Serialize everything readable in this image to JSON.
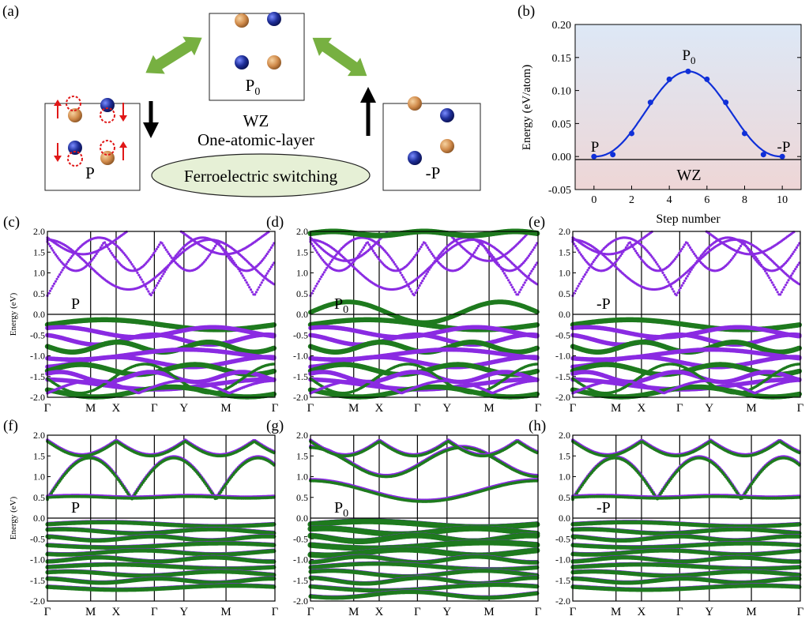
{
  "panel_labels": [
    "(a)",
    "(b)",
    "(c)",
    "(d)",
    "(e)",
    "(f)",
    "(g)",
    "(h)"
  ],
  "schematic": {
    "center_label": "P",
    "center_sub": "0",
    "wz_label": "WZ",
    "layer_label": "One-atomic-layer",
    "switching_label": "Ferroelectric switching",
    "left_label": "P",
    "right_label": "-P",
    "colors": {
      "cation": "#d08a4a",
      "anion": "#1f2f9a",
      "arrow_green": "#77b041",
      "dipole_red": "#e01818"
    }
  },
  "chart_data": [
    {
      "id": "b",
      "type": "line",
      "xlabel": "Step number",
      "ylabel": "Energy (eV/atom)",
      "x": [
        0,
        1,
        2,
        3,
        4,
        5,
        6,
        7,
        8,
        9,
        10
      ],
      "values": [
        0.0,
        0.003,
        0.035,
        0.082,
        0.117,
        0.129,
        0.117,
        0.082,
        0.035,
        0.003,
        0.0
      ],
      "xlim": [
        -1,
        11
      ],
      "ylim": [
        -0.05,
        0.2
      ],
      "xticks": [
        "0",
        "2",
        "4",
        "6",
        "8",
        "10"
      ],
      "yticks": [
        "-0.05",
        "0.00",
        "0.05",
        "0.10",
        "0.15",
        "0.20"
      ],
      "annotations": {
        "start": "P",
        "peak": "P",
        "peak_sub": "0",
        "end": "-P",
        "phase": "WZ"
      },
      "line_color": "#1030d8",
      "background": {
        "top": "#dde8f6",
        "bottom": "#eed6d6"
      },
      "grid": false
    },
    {
      "type": "band-structure",
      "panels": [
        "c",
        "d",
        "e",
        "f",
        "g",
        "h"
      ],
      "ylabel": "Energy (eV)",
      "ylim": [
        -2.0,
        2.0
      ],
      "yticks": [
        "2.0",
        "1.5",
        "1.0",
        "0.5",
        "0.0",
        "-0.5",
        "-1.0",
        "-1.5",
        "-2.0"
      ],
      "kpath": [
        "Γ",
        "M",
        "X",
        "Γ",
        "Y",
        "M",
        "Γ"
      ],
      "kpath_positions": [
        0,
        0.19,
        0.302,
        0.47,
        0.6,
        0.785,
        1.0
      ],
      "fermi_level": 0.0,
      "labels": {
        "c": {
          "main": "P",
          "sub": ""
        },
        "d": {
          "main": "P",
          "sub": "0"
        },
        "e": {
          "main": "-P",
          "sub": ""
        },
        "f": {
          "main": "P",
          "sub": ""
        },
        "g": {
          "main": "P",
          "sub": "0"
        },
        "h": {
          "main": "-P",
          "sub": ""
        }
      },
      "series_colors": {
        "purple": "#8a2be2",
        "green": "#1e7a1e"
      }
    }
  ]
}
